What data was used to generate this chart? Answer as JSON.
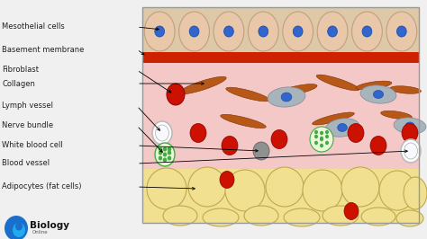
{
  "bg_color": "#f0f0f0",
  "tissue_pink": "#f5c8c8",
  "adipocyte_yellow": "#f0e090",
  "basement_red": "#cc2200",
  "cell_beige": "#e8c8a8",
  "cell_outline": "#c0a080",
  "nucleus_blue": "#3366cc",
  "collagen_brown": "#b85818",
  "rbc_red": "#cc1100",
  "fibroblast_gray": "#a8b4bc",
  "nerve_green": "#44aa44",
  "labels": [
    "Mesothelial cells",
    "Basement membrane",
    "Fibroblast",
    "Collagen",
    "Lymph vessel",
    "Nerve bundle",
    "White blood cell",
    "Blood vessel",
    "Adipocytes (fat cells)"
  ]
}
